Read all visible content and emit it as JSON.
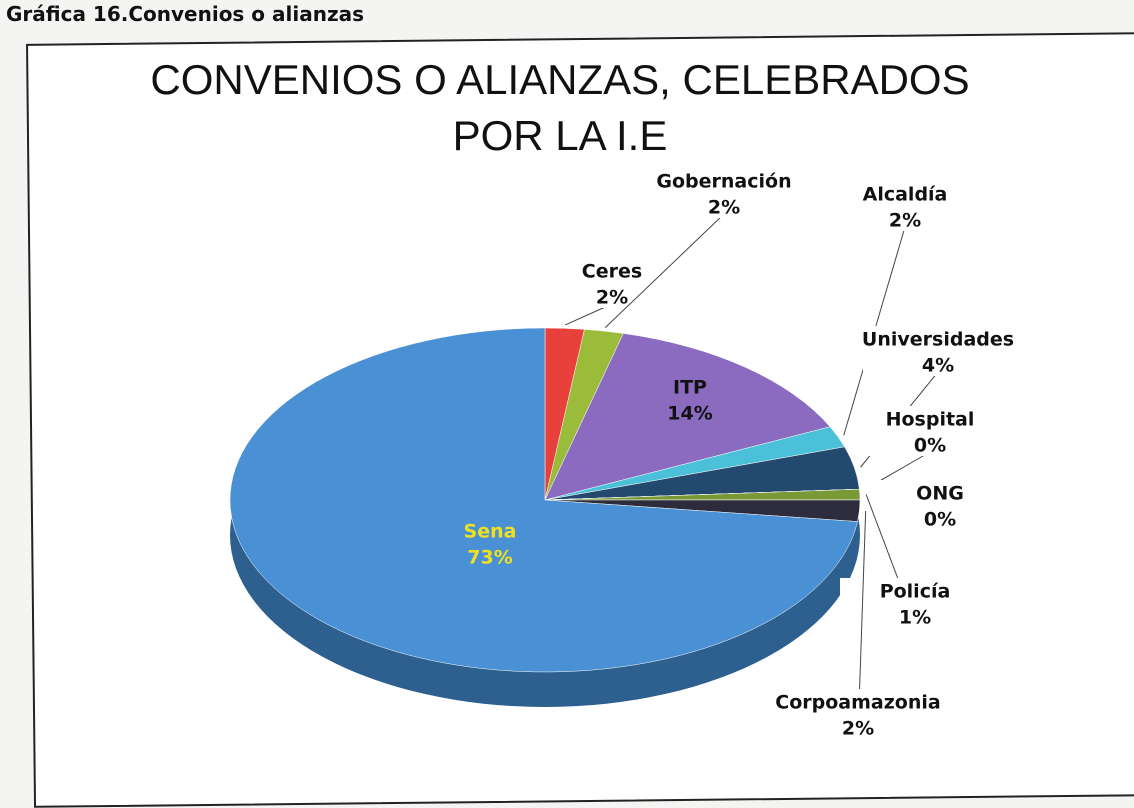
{
  "caption": "Gráfica 16.Convenios o alianzas",
  "chart_data": {
    "type": "pie",
    "title": "CONVENIOS O ALIANZAS, CELEBRADOS POR LA I.E",
    "categories": [
      "Ceres",
      "Gobernación",
      "ITP",
      "Alcaldía",
      "Universidades",
      "Hospital",
      "ONG",
      "Policía",
      "Corpoamazonia",
      "Sena"
    ],
    "values": [
      2,
      2,
      14,
      2,
      4,
      0,
      0,
      1,
      2,
      73
    ],
    "value_labels": [
      "2%",
      "2%",
      "14%",
      "2%",
      "4%",
      "0%",
      "0%",
      "1%",
      "2%",
      "73%"
    ],
    "colors": [
      "#e8413c",
      "#9bbb3b",
      "#8a6bbf",
      "#4bc0d9",
      "#24496e",
      "#4a7fb0",
      "#8aa05a",
      "#7a9a3a",
      "#2c2c3c",
      "#4a90d4"
    ]
  }
}
